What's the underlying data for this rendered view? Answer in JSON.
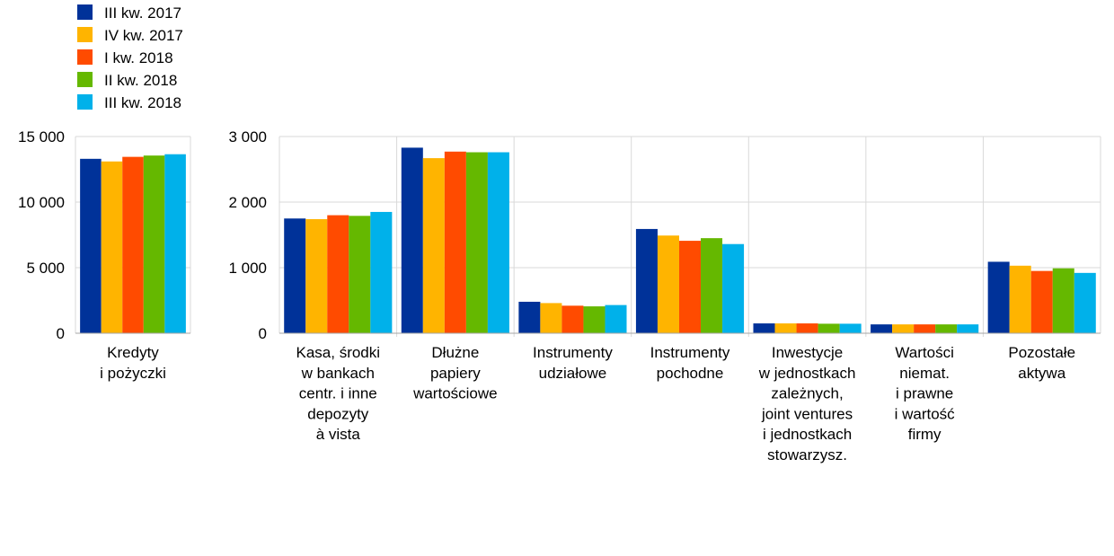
{
  "colors": [
    "#003299",
    "#FFB400",
    "#FF4B00",
    "#65B800",
    "#00B1EA"
  ],
  "chart_data": [
    {
      "type": "bar",
      "ylim": [
        0,
        15000
      ],
      "yticks": [
        0,
        5000,
        10000,
        15000
      ],
      "ytick_labels": [
        "0",
        "5 000",
        "10 000",
        "15 000"
      ],
      "categories": [
        [
          "Kredyty",
          "i pożyczki"
        ]
      ],
      "series": [
        {
          "name": "III kw. 2017",
          "values": [
            13300
          ]
        },
        {
          "name": "IV kw. 2017",
          "values": [
            13100
          ]
        },
        {
          "name": "I kw. 2018",
          "values": [
            13450
          ]
        },
        {
          "name": "II kw. 2018",
          "values": [
            13550
          ]
        },
        {
          "name": "III kw. 2018",
          "values": [
            13650
          ]
        }
      ]
    },
    {
      "type": "bar",
      "ylim": [
        0,
        3000
      ],
      "yticks": [
        0,
        1000,
        2000,
        3000
      ],
      "ytick_labels": [
        "0",
        "1 000",
        "2 000",
        "3 000"
      ],
      "categories": [
        [
          "Kasa, środki",
          "w bankach",
          "centr. i inne",
          "depozyty",
          "à vista"
        ],
        [
          "Dłużne",
          "papiery",
          "wartościowe"
        ],
        [
          "Instrumenty",
          "udziałowe"
        ],
        [
          "Instrumenty",
          "pochodne"
        ],
        [
          "Inwestycje",
          "w jednostkach",
          "zależnych,",
          "joint ventures",
          "i jednostkach",
          "stowarzysz."
        ],
        [
          "Wartości",
          "niemat.",
          "i prawne",
          "i wartość",
          "firmy"
        ],
        [
          "Pozostałe",
          "aktywa"
        ]
      ],
      "series": [
        {
          "name": "III kw. 2017",
          "values": [
            1750,
            2830,
            480,
            1590,
            150,
            135,
            1090
          ]
        },
        {
          "name": "IV kw. 2017",
          "values": [
            1740,
            2670,
            460,
            1490,
            150,
            135,
            1030
          ]
        },
        {
          "name": "I kw. 2018",
          "values": [
            1800,
            2770,
            420,
            1410,
            150,
            135,
            950
          ]
        },
        {
          "name": "II kw. 2018",
          "values": [
            1790,
            2760,
            410,
            1450,
            145,
            135,
            990
          ]
        },
        {
          "name": "III kw. 2018",
          "values": [
            1850,
            2760,
            430,
            1360,
            145,
            135,
            920
          ]
        }
      ]
    }
  ]
}
